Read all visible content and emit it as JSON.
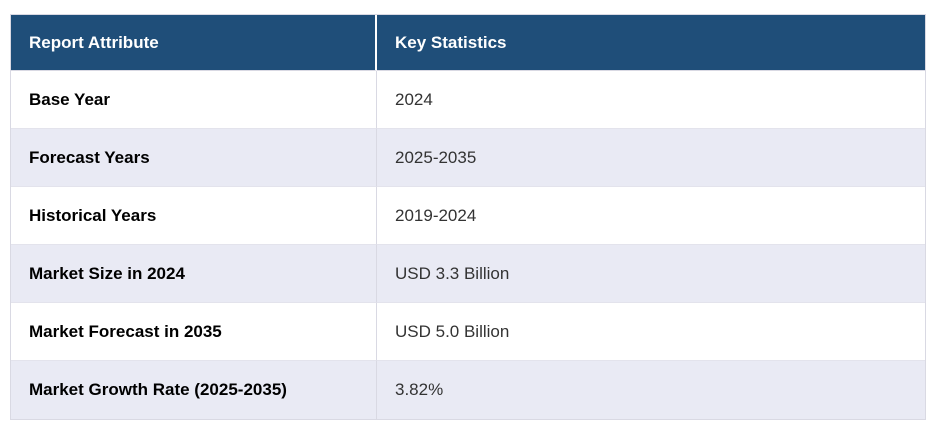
{
  "chart_data": {
    "type": "table",
    "title": "",
    "columns": [
      "Report Attribute",
      "Key Statistics"
    ],
    "rows": [
      [
        "Base Year",
        "2024"
      ],
      [
        "Forecast Years",
        "2025-2035"
      ],
      [
        "Historical Years",
        "2019-2024"
      ],
      [
        "Market Size in 2024",
        "USD 3.3 Billion"
      ],
      [
        "Market Forecast in 2035",
        "USD 5.0 Billion"
      ],
      [
        "Market Growth Rate (2025-2035)",
        "3.82%"
      ]
    ]
  },
  "colors": {
    "header_bg": "#1f4e79",
    "header_text": "#ffffff",
    "alt_row_bg": "#e9eaf4",
    "row_bg": "#ffffff",
    "border": "#d9d9e3",
    "attribute_text": "#000000",
    "value_text": "#333333"
  }
}
